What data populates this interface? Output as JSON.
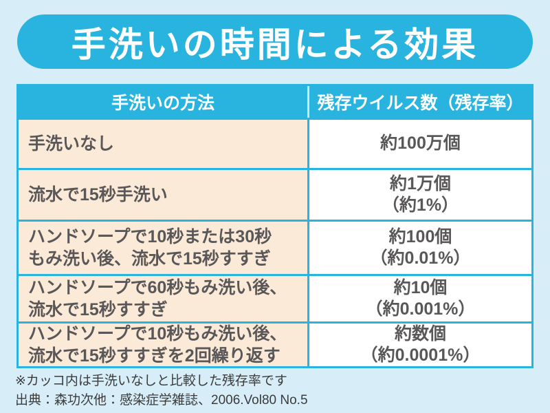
{
  "page": {
    "background_color": "#d7edf8"
  },
  "title_banner": {
    "text": "手洗いの時間による効果",
    "background_color": "#29b4df",
    "text_color": "#ffffff"
  },
  "chart_data": {
    "type": "table",
    "title": "手洗いの時間による効果",
    "columns": [
      "手洗いの方法",
      "残存ウイルス数（残存率）"
    ],
    "rows": [
      {
        "method": "手洗いなし",
        "virus_count": "約100万個",
        "survival_rate": ""
      },
      {
        "method": "流水で15秒手洗い",
        "virus_count": "約1万個",
        "survival_rate": "（約1%）"
      },
      {
        "method": "ハンドソープで10秒または30秒\nもみ洗い後、流水で15秒すすぎ",
        "virus_count": "約100個",
        "survival_rate": "（約0.01%）"
      },
      {
        "method": "ハンドソープで60秒もみ洗い後、\n流水で15秒すすぎ",
        "virus_count": "約10個",
        "survival_rate": "（約0.001%）"
      },
      {
        "method": "ハンドソープで10秒もみ洗い後、\n流水で15秒すすぎを2回繰り返す",
        "virus_count": "約数個",
        "survival_rate": "（約0.0001%）"
      }
    ],
    "footnote": "※カッコ内は手洗いなしと比較した残存率です",
    "source": "出典：森功次他：感染症学雑誌、2006.Vol80 No.5"
  },
  "colors": {
    "accent_cyan": "#29b4df",
    "row_peach": "#fcead9",
    "cell_white": "#ffffff",
    "text_dark": "#595757",
    "header_divider_light": "#c9e9f5"
  }
}
